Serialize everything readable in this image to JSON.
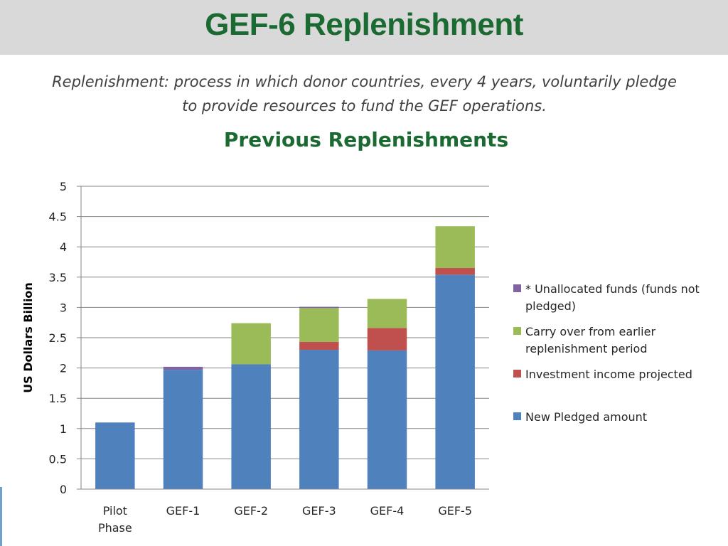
{
  "slide": {
    "title": "GEF-6 Replenishment",
    "definition": "Replenishment: process in which donor countries, every 4 years, voluntarily pledge to provide resources to fund the GEF operations.",
    "section_title": "Previous Replenishments"
  },
  "chart_data": {
    "type": "bar",
    "stacked": true,
    "title": "",
    "xlabel": "",
    "ylabel": "US Dollars Billion",
    "ylim": [
      0,
      5
    ],
    "yticks": [
      "0",
      "0.5",
      "1",
      "1.5",
      "2",
      "2.5",
      "3",
      "3.5",
      "4",
      "4.5",
      "5"
    ],
    "categories": [
      [
        "Pilot",
        "Phase"
      ],
      [
        "GEF-1"
      ],
      [
        "GEF-2"
      ],
      [
        "GEF-3"
      ],
      [
        "GEF-4"
      ],
      [
        "GEF-5"
      ]
    ],
    "series": [
      {
        "name": "New Pledged amount",
        "color": "#4f81bd",
        "values": [
          1.1,
          1.97,
          2.06,
          2.3,
          2.29,
          3.54
        ]
      },
      {
        "name": "Investment income projected",
        "color": "#c0504d",
        "values": [
          0,
          0,
          0,
          0.13,
          0.37,
          0.11
        ]
      },
      {
        "name": "Carry over from earlier replenishment period",
        "color": "#9bbb59",
        "values": [
          0,
          0,
          0.68,
          0.56,
          0.48,
          0.69
        ]
      },
      {
        "name": "* Unallocated funds (funds not pledged)",
        "color": "#8064a2",
        "values": [
          0,
          0.05,
          0,
          0.02,
          0,
          0
        ]
      }
    ],
    "legend": {
      "position": "right",
      "entries": [
        {
          "lines": [
            "* Unallocated funds (funds not",
            "pledged)"
          ],
          "color": "#8064a2"
        },
        {
          "lines": [
            "Carry over from earlier",
            "replenishment period"
          ],
          "color": "#9bbb59"
        },
        {
          "lines": [
            "Investment income projected"
          ],
          "color": "#c0504d"
        },
        {
          "lines": [
            "New Pledged amount"
          ],
          "color": "#4f81bd"
        }
      ]
    },
    "grid": true,
    "gridline_color": "#868686"
  }
}
